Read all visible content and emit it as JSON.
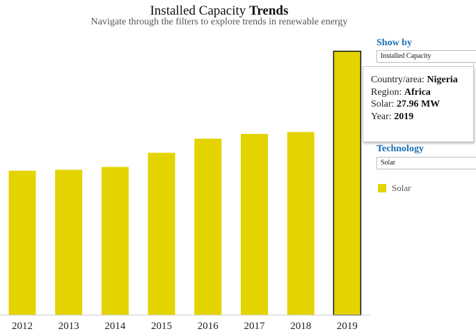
{
  "header": {
    "title_regular": "Installed Capacity",
    "title_bold": "Trends",
    "subtitle": "Navigate through the filters to explore trends in renewable energy"
  },
  "filters": {
    "show_by_label": "Show by",
    "show_by_value": "Installed Capacity",
    "technology_label": "Technology",
    "technology_value": "Solar"
  },
  "legend": {
    "label": "Solar",
    "color": "#e3d400"
  },
  "tooltip": {
    "country_label": "Country/area:",
    "country_value": "Nigeria",
    "region_label": "Region:",
    "region_value": "Africa",
    "solar_label": "Solar:",
    "solar_value": "27.96 MW",
    "year_label": "Year:",
    "year_value": "2019"
  },
  "chart_data": {
    "type": "bar",
    "categories": [
      "2012",
      "2013",
      "2014",
      "2015",
      "2016",
      "2017",
      "2018",
      "2019"
    ],
    "values": [
      15.3,
      15.4,
      15.7,
      17.2,
      18.7,
      19.2,
      19.4,
      27.96
    ],
    "ylim": [
      0,
      28
    ],
    "hovered_category": "2019",
    "bar_color": "#e3d400",
    "grid": false
  }
}
